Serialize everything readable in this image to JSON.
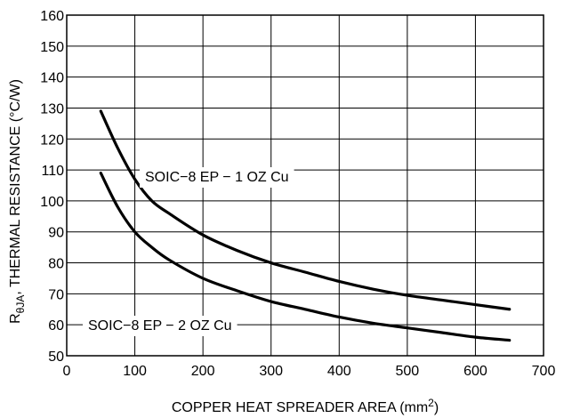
{
  "chart_data": {
    "type": "line",
    "xlabel": "COPPER HEAT SPREADER AREA (mm²)",
    "ylabel": "RθJA, THERMAL RESISTANCE (°C/W)",
    "xlim": [
      0,
      700
    ],
    "ylim": [
      50,
      160
    ],
    "xticks": [
      0,
      100,
      200,
      300,
      400,
      500,
      600,
      700
    ],
    "yticks": [
      50,
      60,
      70,
      80,
      90,
      100,
      110,
      120,
      130,
      140,
      150,
      160
    ],
    "grid": true,
    "series": [
      {
        "name": "SOIC−8 EP − 1 OZ Cu",
        "x": [
          50,
          75,
          100,
          125,
          150,
          200,
          250,
          300,
          350,
          400,
          450,
          500,
          550,
          600,
          650
        ],
        "y": [
          129,
          117,
          107,
          100,
          96,
          89,
          84,
          80,
          77,
          74,
          71.5,
          69.5,
          68,
          66.5,
          65
        ]
      },
      {
        "name": "SOIC−8 EP − 2 OZ Cu",
        "x": [
          50,
          75,
          100,
          125,
          150,
          200,
          250,
          300,
          350,
          400,
          450,
          500,
          550,
          600,
          650
        ],
        "y": [
          109,
          98,
          90,
          85,
          81,
          75,
          71,
          67.5,
          65,
          62.5,
          60.5,
          59,
          57.5,
          56,
          55
        ]
      }
    ]
  }
}
